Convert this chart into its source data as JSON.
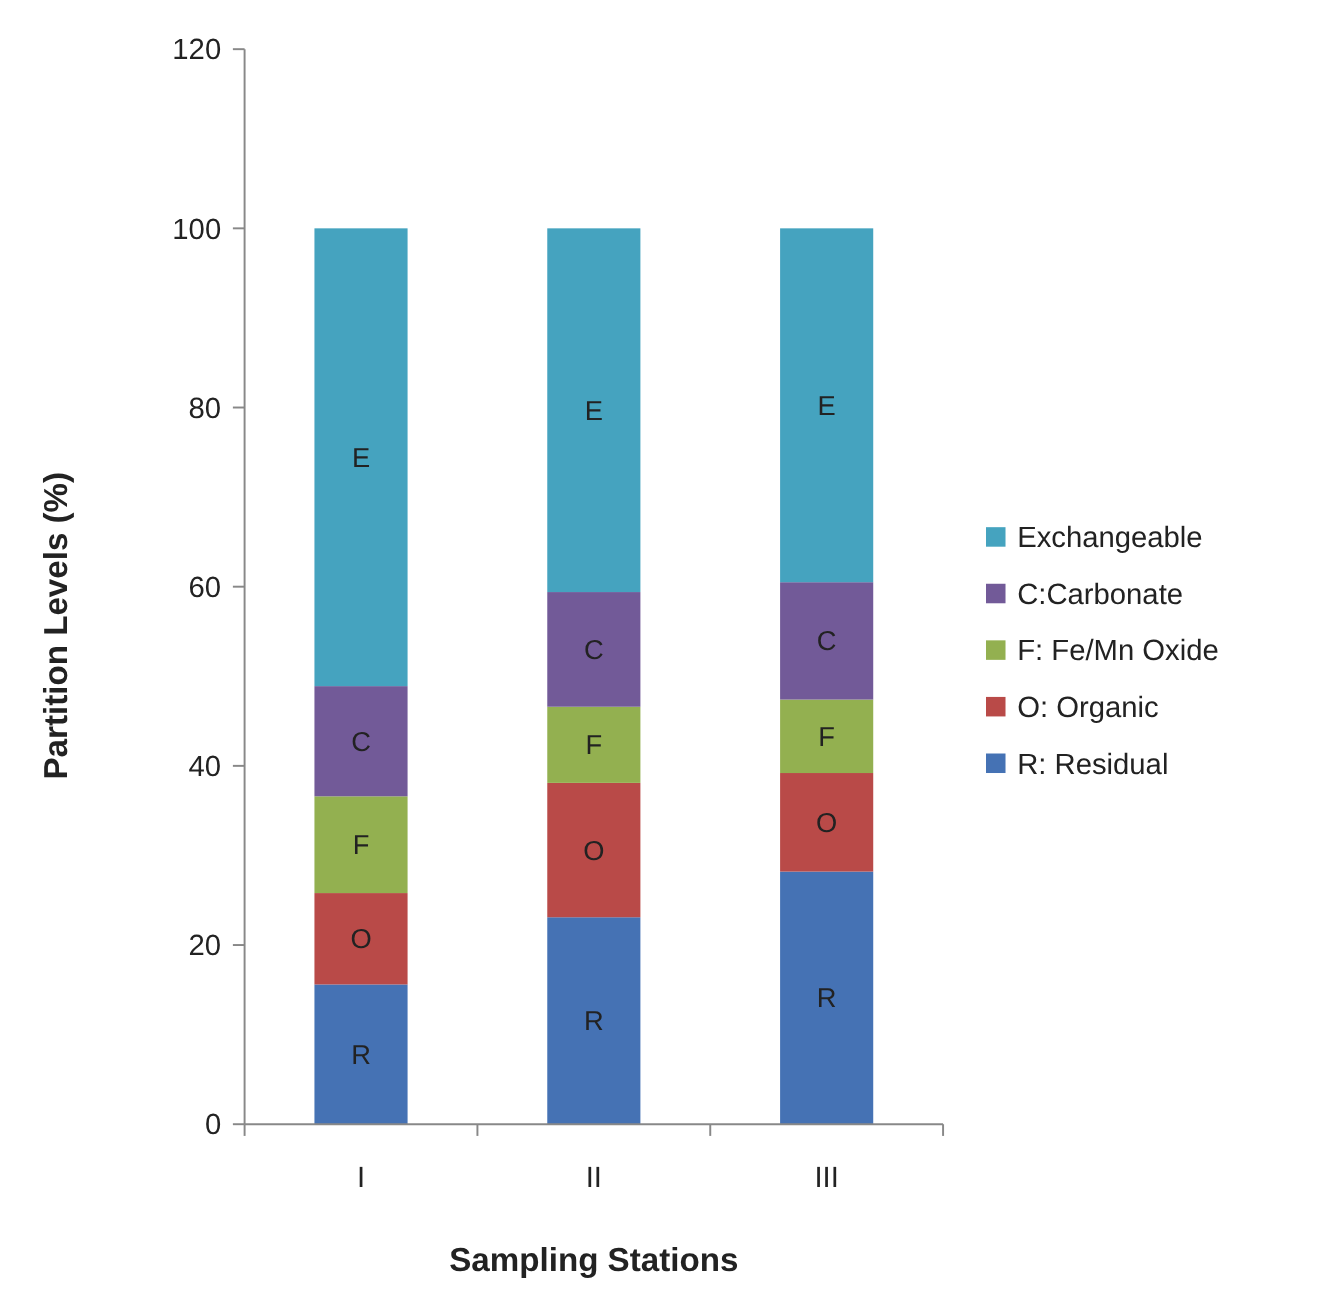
{
  "chart_data": {
    "type": "bar",
    "stacked": true,
    "xlabel": "Sampling Stations",
    "ylabel": "Partition Levels (%)",
    "categories": [
      "I",
      "II",
      "III"
    ],
    "series": [
      {
        "name": "R: Residual",
        "color": "#4572b4",
        "values": [
          15.6,
          23.1,
          28.2
        ]
      },
      {
        "name": "O: Organic",
        "color": "#b94a48",
        "values": [
          10.2,
          15.0,
          11.0
        ]
      },
      {
        "name": "F: Fe/Mn Oxide",
        "color": "#93b050",
        "values": [
          10.8,
          8.5,
          8.2
        ]
      },
      {
        "name": "C:Carbonate",
        "color": "#725a98",
        "values": [
          12.3,
          12.8,
          13.1
        ]
      },
      {
        "name": "Exchangeable",
        "color": "#45a3bf",
        "values": [
          51.1,
          40.6,
          39.5
        ]
      }
    ],
    "ylim": [
      0,
      120
    ],
    "yticks": [
      0,
      20,
      40,
      60,
      80,
      100,
      120
    ],
    "legend": "right",
    "annotations": [
      "R",
      "O",
      "F",
      "C",
      "E",
      "R",
      "O",
      "F",
      "C",
      "E",
      "R",
      "O",
      "F",
      "C",
      "E"
    ]
  }
}
